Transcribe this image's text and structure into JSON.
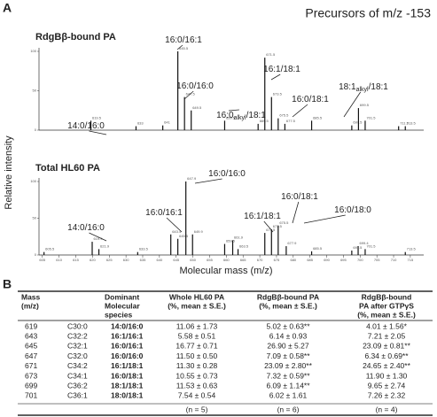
{
  "panel_a": {
    "label": "A",
    "title": "Precursors of m/z -153",
    "x_axis_label": "Molecular mass (m/z)",
    "y_axis_label": "Relative intensity",
    "xlim": [
      604,
      719
    ],
    "xticks": [
      605,
      610,
      615,
      620,
      625,
      630,
      635,
      640,
      645,
      650,
      655,
      660,
      665,
      670,
      675,
      680,
      685,
      690,
      695,
      700,
      705,
      710,
      715
    ],
    "spectra": [
      {
        "name": "RdgBβ-bound PA",
        "ylim": [
          0,
          100
        ],
        "yticks": [
          0,
          50,
          100
        ],
        "x": [
          619.5,
          633,
          641,
          645.5,
          647.5,
          649.5,
          659.5,
          669.5,
          671.5,
          673.5,
          675.5,
          677.5,
          685.5,
          697.5,
          699.5,
          701.5,
          711.5,
          713.5
        ],
        "values": [
          12,
          5,
          6,
          100,
          42,
          25,
          12,
          8,
          92,
          42,
          15,
          8,
          12,
          6,
          28,
          12,
          5,
          5
        ],
        "annotations": [
          {
            "text": [
              "14:0/16:0"
            ]
          },
          {
            "text": [
              "16:0/16:1"
            ]
          },
          {
            "text": [
              "16:0/16:0"
            ]
          },
          {
            "text": [
              "16:0",
              "alkyl",
              "/18:1"
            ]
          },
          {
            "text": [
              "16:1/18:1"
            ]
          },
          {
            "text": [
              "16:0/18:1"
            ]
          },
          {
            "text": [
              "18:1",
              "alkyl",
              "/18:1"
            ]
          }
        ]
      },
      {
        "name": "Total HL60 PA",
        "ylim": [
          0,
          100
        ],
        "yticks": [
          0,
          50,
          100
        ],
        "x": [
          605.5,
          619.9,
          621.9,
          633.5,
          643.4,
          645.5,
          647.9,
          649.9,
          659.5,
          661.9,
          663.5,
          671.5,
          673.5,
          675.5,
          677.9,
          685.5,
          697.5,
          699.4,
          701.5,
          713.5
        ],
        "values": [
          4,
          18,
          8,
          4,
          28,
          22,
          100,
          28,
          15,
          20,
          8,
          30,
          35,
          40,
          12,
          5,
          6,
          12,
          8,
          4
        ],
        "annotations": [
          {
            "text": [
              "14:0/16:0"
            ]
          },
          {
            "text": [
              "16:0/16:1"
            ]
          },
          {
            "text": [
              "16:0/16:0"
            ]
          },
          {
            "text": [
              "16:1/18:1"
            ]
          },
          {
            "text": [
              "16:0/18:1"
            ]
          },
          {
            "text": [
              "16:0/18:0"
            ]
          }
        ]
      }
    ]
  },
  "panel_b": {
    "label": "B",
    "header": [
      [
        "Mass",
        "(m/z)"
      ],
      [
        "Dominant",
        "Molecular",
        "species"
      ],
      [
        "Whole HL60 PA",
        "(%, mean ± S.E.)"
      ],
      [
        "RdgBβ-bound PA",
        "(%, mean ± S.E.)"
      ],
      [
        "RdgBβ-bound",
        "PA after GTPγS",
        "(%, mean ± S.E.)"
      ]
    ],
    "rows": [
      [
        "619",
        "C30:0",
        "14:0/16:0",
        "11.06 ± 1.73",
        "5.02 ± 0.63**",
        "4.01 ± 1.56*"
      ],
      [
        "643",
        "C32:2",
        "16:1/16:1",
        "5.58 ± 0.51",
        "6.14 ± 0.93",
        "7.21 ± 2.05"
      ],
      [
        "645",
        "C32:1",
        "16:0/16:1",
        "16.77 ± 0.71",
        "26.90 ± 5.27",
        "23.09 ± 0.81**"
      ],
      [
        "647",
        "C32:0",
        "16:0/16:0",
        "11.50 ± 0.50",
        "7.09 ± 0.58**",
        "6.34 ± 0.69**"
      ],
      [
        "671",
        "C34:2",
        "16:1/18:1",
        "11.30 ± 0.28",
        "23.09 ± 2.80**",
        "24.65 ± 2.40**"
      ],
      [
        "673",
        "C34:1",
        "16:0/18:1",
        "10.55 ± 0.73",
        "7.32 ± 0.59**",
        "11.90 ± 1.30"
      ],
      [
        "699",
        "C36:2",
        "18:1/18:1",
        "11.53 ± 0.63",
        "6.09 ± 1.14**",
        "9.65 ± 2.74"
      ],
      [
        "701",
        "C36:1",
        "18:0/18:1",
        "7.54 ± 0.54",
        "6.02 ± 1.61",
        "7.26 ± 2.32"
      ]
    ],
    "footer": [
      "(n = 5)",
      "(n = 6)",
      "(n = 4)"
    ]
  }
}
